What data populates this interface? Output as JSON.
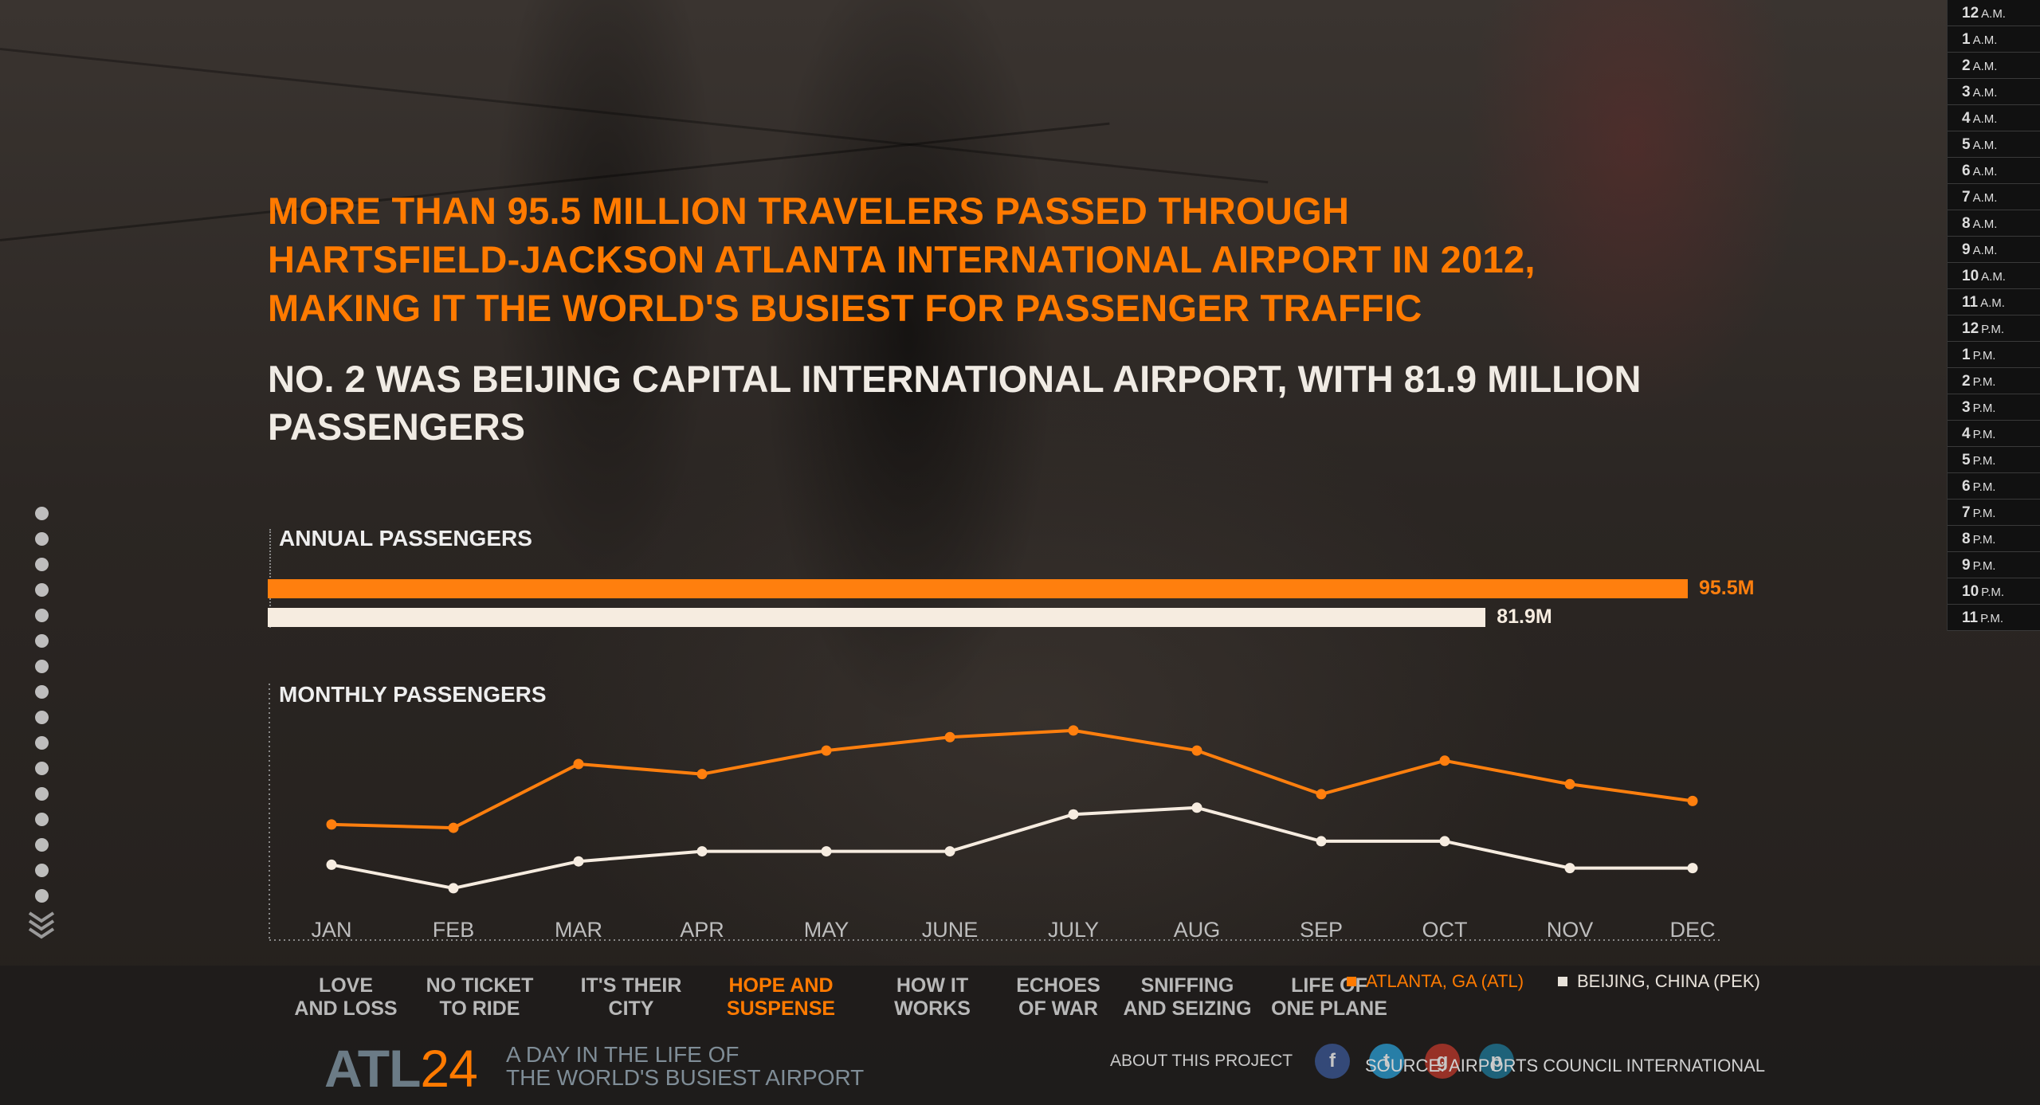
{
  "headline": {
    "lines": [
      "MORE THAN 95.5 MILLION TRAVELERS PASSED THROUGH",
      "HARTSFIELD-JACKSON ATLANTA INTERNATIONAL AIRPORT IN 2012,",
      "MAKING IT THE WORLD'S BUSIEST FOR PASSENGER TRAFFIC"
    ]
  },
  "subhead": {
    "line1": "NO. 2 WAS BEIJING CAPITAL INTERNATIONAL AIRPORT, WITH 81.9 MILLION",
    "line2": "PASSENGERS"
  },
  "hours": [
    {
      "h": "12",
      "s": "A.M."
    },
    {
      "h": "1",
      "s": "A.M."
    },
    {
      "h": "2",
      "s": "A.M."
    },
    {
      "h": "3",
      "s": "A.M."
    },
    {
      "h": "4",
      "s": "A.M."
    },
    {
      "h": "5",
      "s": "A.M."
    },
    {
      "h": "6",
      "s": "A.M."
    },
    {
      "h": "7",
      "s": "A.M."
    },
    {
      "h": "8",
      "s": "A.M."
    },
    {
      "h": "9",
      "s": "A.M."
    },
    {
      "h": "10",
      "s": "A.M."
    },
    {
      "h": "11",
      "s": "A.M."
    },
    {
      "h": "12",
      "s": "P.M."
    },
    {
      "h": "1",
      "s": "P.M."
    },
    {
      "h": "2",
      "s": "P.M."
    },
    {
      "h": "3",
      "s": "P.M."
    },
    {
      "h": "4",
      "s": "P.M."
    },
    {
      "h": "5",
      "s": "P.M."
    },
    {
      "h": "6",
      "s": "P.M."
    },
    {
      "h": "7",
      "s": "P.M."
    },
    {
      "h": "8",
      "s": "P.M."
    },
    {
      "h": "9",
      "s": "P.M."
    },
    {
      "h": "10",
      "s": "P.M."
    },
    {
      "h": "11",
      "s": "P.M."
    }
  ],
  "section_dots_count": 16,
  "chart_data": [
    {
      "type": "bar",
      "title": "ANNUAL PASSENGERS",
      "orientation": "horizontal",
      "categories": [
        "ATLANTA, GA (ATL)",
        "BEIJING, CHINA (PEK)"
      ],
      "values": [
        95.5,
        81.9
      ],
      "value_labels": [
        "95.5M",
        "81.9M"
      ],
      "unit": "million passengers",
      "colors": [
        "#ff7f0e",
        "#f6ece0"
      ]
    },
    {
      "type": "line",
      "title": "MONTHLY PASSENGERS",
      "categories": [
        "JAN",
        "FEB",
        "MAR",
        "APR",
        "MAY",
        "JUNE",
        "JULY",
        "AUG",
        "SEP",
        "OCT",
        "NOV",
        "DEC"
      ],
      "series": [
        {
          "name": "ATLANTA, GA (ATL)",
          "color": "#ff7f0e",
          "values": [
            7.2,
            7.15,
            8.1,
            7.95,
            8.3,
            8.5,
            8.6,
            8.3,
            7.65,
            8.15,
            7.8,
            7.55
          ]
        },
        {
          "name": "BEIJING, CHINA (PEK)",
          "color": "#f6ece0",
          "values": [
            6.6,
            6.25,
            6.65,
            6.8,
            6.8,
            6.8,
            7.35,
            7.45,
            6.95,
            6.95,
            6.55,
            6.55
          ]
        }
      ],
      "unit": "million passengers"
    }
  ],
  "stories": [
    {
      "label": "LOVE\nAND LOSS",
      "active": false
    },
    {
      "label": "NO TICKET\nTO RIDE",
      "active": false
    },
    {
      "label": "IT'S THEIR\nCITY",
      "active": false
    },
    {
      "label": "HOPE AND\nSUSPENSE",
      "active": true
    },
    {
      "label": "HOW IT\nWORKS",
      "active": false
    },
    {
      "label": "ECHOES\nOF WAR",
      "active": false
    },
    {
      "label": "SNIFFING\nAND SEIZING",
      "active": false
    },
    {
      "label": "LIFE OF\nONE PLANE",
      "active": false
    }
  ],
  "legend": {
    "atl": "ATLANTA, GA (ATL)",
    "pek": "BEIJING, CHINA (PEK)"
  },
  "footer": {
    "logo_a": "ATL",
    "logo_b": "24",
    "tagline": "A DAY IN THE LIFE OF\nTHE WORLD'S BUSIEST AIRPORT",
    "about": "ABOUT THIS PROJECT",
    "source": "SOURCE: AIRPORTS COUNCIL INTERNATIONAL",
    "social": [
      "facebook-icon",
      "twitter-icon",
      "google-plus-icon",
      "pinterest-icon"
    ]
  },
  "colors": {
    "accent": "#ff7a00",
    "atl": "#ff7f0e",
    "pek": "#f6ece0"
  }
}
